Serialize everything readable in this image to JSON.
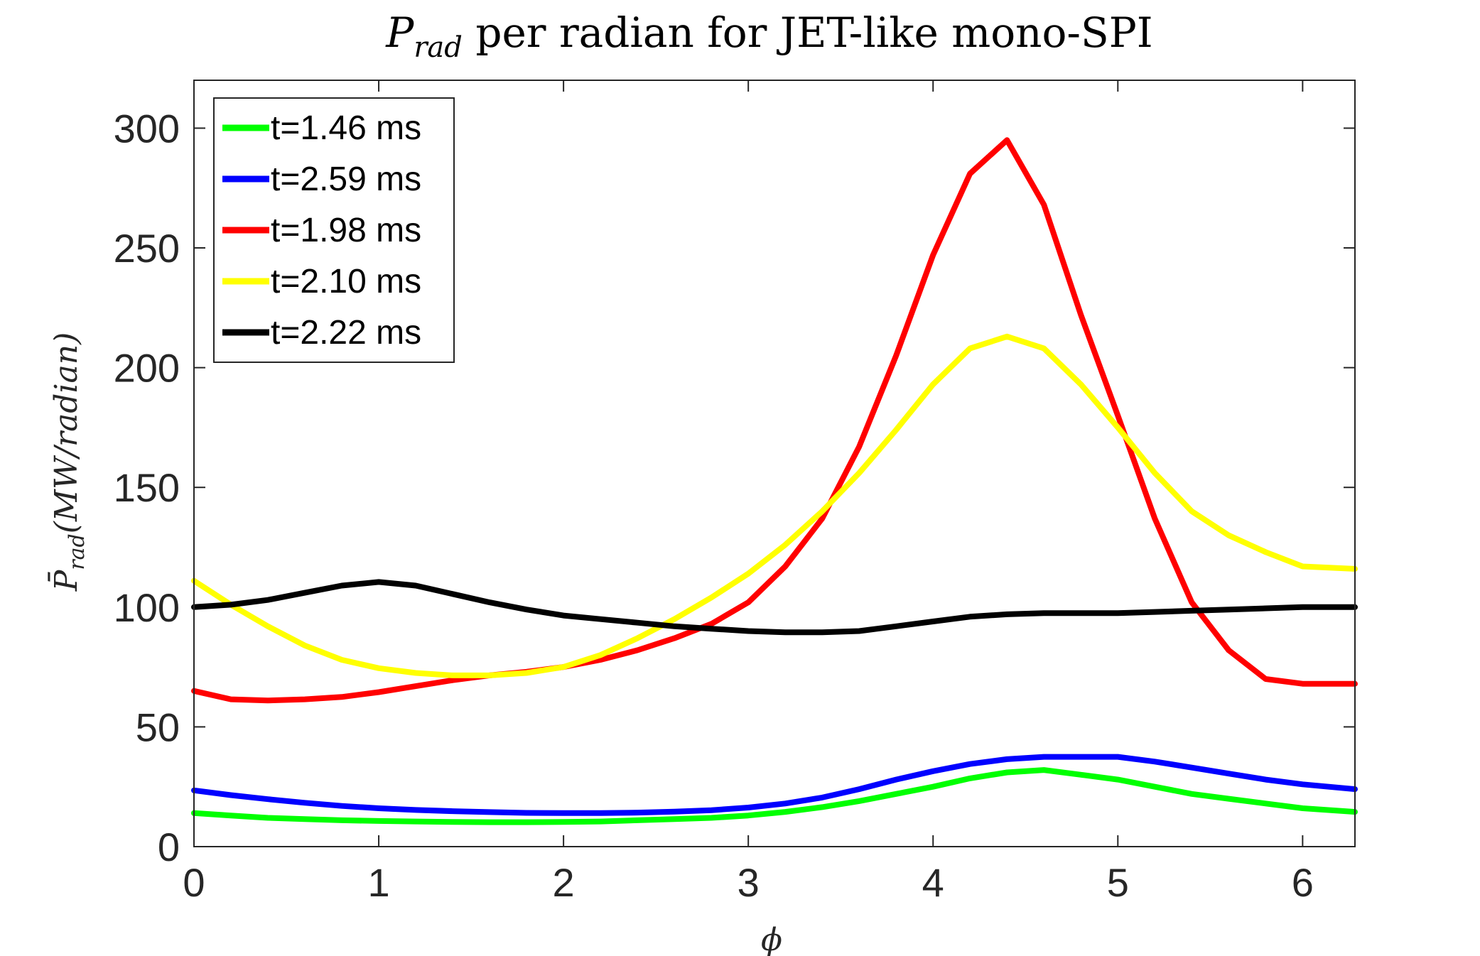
{
  "chart_data": {
    "type": "line",
    "title_main": "P",
    "title_sub": "rad",
    "title_rest": " per radian for JET-like mono-SPI",
    "ylabel_main": "P̄",
    "ylabel_sub": "rad",
    "ylabel_rest": "(MW/radian)",
    "xlabel": "ϕ",
    "xlim": [
      0,
      6.2832
    ],
    "ylim": [
      0,
      320
    ],
    "xticks": [
      0,
      1,
      2,
      3,
      4,
      5,
      6
    ],
    "yticks": [
      0,
      50,
      100,
      150,
      200,
      250,
      300
    ],
    "legend_position": "top-left",
    "x": [
      0,
      0.2,
      0.4,
      0.6,
      0.8,
      1.0,
      1.2,
      1.4,
      1.6,
      1.8,
      2.0,
      2.2,
      2.4,
      2.6,
      2.8,
      3.0,
      3.2,
      3.4,
      3.6,
      3.8,
      4.0,
      4.2,
      4.4,
      4.6,
      4.8,
      5.0,
      5.2,
      5.4,
      5.6,
      5.8,
      6.0,
      6.2832
    ],
    "series": [
      {
        "name": "t=1.46 ms",
        "color": "#00ff00",
        "values": [
          14,
          13,
          12,
          11.5,
          11,
          10.7,
          10.5,
          10.3,
          10.2,
          10.2,
          10.3,
          10.5,
          11,
          11.5,
          12,
          13,
          14.5,
          16.5,
          19,
          22,
          25,
          28.5,
          31,
          32,
          30,
          28,
          25,
          22,
          20,
          18,
          16,
          14.5
        ]
      },
      {
        "name": "t=2.59 ms",
        "color": "#0000ff",
        "values": [
          23.5,
          21.5,
          19.8,
          18.3,
          17,
          16,
          15.3,
          14.8,
          14.4,
          14.1,
          14,
          14,
          14.2,
          14.6,
          15.2,
          16.3,
          18,
          20.5,
          24,
          28,
          31.5,
          34.5,
          36.5,
          37.5,
          37.5,
          37.5,
          35.5,
          33,
          30.5,
          28,
          26,
          24
        ]
      },
      {
        "name": "t=1.98 ms",
        "color": "#ff0000",
        "values": [
          65,
          61.5,
          61,
          61.5,
          62.5,
          64.5,
          67,
          69.5,
          71.5,
          73,
          75,
          78,
          82,
          87,
          93,
          102,
          117,
          137,
          167,
          205,
          247,
          281,
          295,
          268,
          222,
          180,
          137,
          102,
          82,
          70,
          68,
          68
        ]
      },
      {
        "name": "t=2.10 ms",
        "color": "#ffff00",
        "values": [
          111,
          101,
          92,
          84,
          78,
          74.5,
          72.5,
          71.5,
          71.5,
          72.5,
          75,
          80,
          87,
          95,
          104,
          114,
          126,
          140,
          156,
          174,
          193,
          208,
          213,
          208,
          193,
          175,
          156,
          140,
          130,
          123,
          117,
          116
        ]
      },
      {
        "name": "t=2.22 ms",
        "color": "#000000",
        "values": [
          100,
          101,
          103,
          106,
          109,
          110.5,
          109,
          105.5,
          102,
          99,
          96.5,
          95,
          93.5,
          92,
          91,
          90,
          89.5,
          89.5,
          90,
          92,
          94,
          96,
          97,
          97.5,
          97.5,
          97.5,
          98,
          98.5,
          99,
          99.5,
          100,
          100
        ]
      }
    ]
  }
}
